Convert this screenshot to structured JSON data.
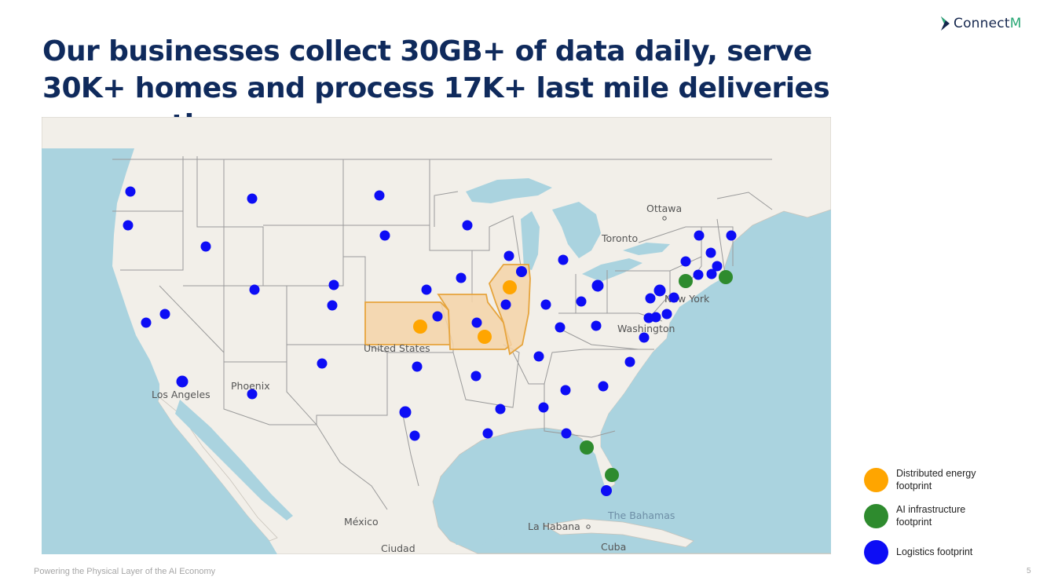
{
  "brand": {
    "name_prefix": "Connect",
    "name_suffix": "M",
    "colors": {
      "navy": "#14264d",
      "green": "#2aa876"
    }
  },
  "title": "Our businesses collect 30GB+ of data daily, serve 30K+ homes and process 17K+ last mile deliveries per month",
  "map": {
    "labels": {
      "ottawa": "Ottawa",
      "toronto": "Toronto",
      "new_york": "New York",
      "washington": "Washington",
      "united_states": "United States",
      "phoenix": "Phoenix",
      "los_angeles": "Los Angeles",
      "mexico": "México",
      "ciudad": "Ciudad",
      "la_habana": "La Habana",
      "cuba": "Cuba",
      "bahamas": "The Bahamas"
    },
    "colors": {
      "water": "#aad3df",
      "land": "#f2efe9",
      "border": "#9a9a9a",
      "highlight_fill": "#f5d4a8",
      "highlight_stroke": "#e6a43c",
      "energy": "#ffa500",
      "ai": "#2e8b2e",
      "logistics": "#0d0df5"
    }
  },
  "legend": {
    "items": [
      {
        "label": "Distributed energy footprint",
        "color": "#ffa500"
      },
      {
        "label": "AI infrastructure footprint",
        "color": "#2e8b2e"
      },
      {
        "label": "Logistics footprint",
        "color": "#0d0df5"
      }
    ]
  },
  "footer": {
    "text": "Powering the Physical Layer of the AI Economy",
    "page": "5"
  }
}
